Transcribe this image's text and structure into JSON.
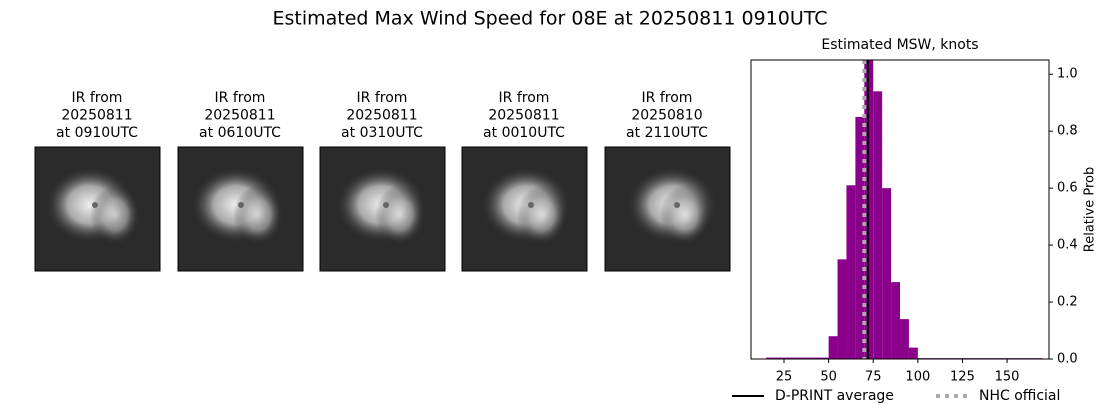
{
  "title": "Estimated Max Wind Speed for 08E at 20250811 0910UTC",
  "panels": [
    {
      "label": [
        "IR from",
        "20250811",
        "at 0910UTC"
      ]
    },
    {
      "label": [
        "IR from",
        "20250811",
        "at 0610UTC"
      ]
    },
    {
      "label": [
        "IR from",
        "20250811",
        "at 0310UTC"
      ]
    },
    {
      "label": [
        "IR from",
        "20250811",
        "at 0010UTC"
      ]
    },
    {
      "label": [
        "IR from",
        "20250810",
        "at 2110UTC"
      ]
    }
  ],
  "chart_data": {
    "type": "histogram",
    "title": "Estimated MSW, knots",
    "y_label": "Relative Prob",
    "color": "#8b008b",
    "bins": [
      15,
      20,
      25,
      30,
      35,
      40,
      45,
      50,
      55,
      60,
      65,
      70,
      75,
      80,
      85,
      90,
      95,
      100,
      105,
      110,
      115,
      120,
      125,
      130,
      135,
      140,
      145,
      150,
      155,
      160,
      165,
      170
    ],
    "values": [
      0.005,
      0.005,
      0.005,
      0.005,
      0.005,
      0.005,
      0.005,
      0.08,
      0.35,
      0.61,
      0.85,
      1.05,
      0.94,
      0.6,
      0.27,
      0.14,
      0.04,
      0.003,
      0.003,
      0.003,
      0.003,
      0.003,
      0.003,
      0.003,
      0.003,
      0.003,
      0.003,
      0.003,
      0.003,
      0.003,
      0.003
    ],
    "xlim": [
      6.5,
      173.5
    ],
    "ylim": [
      0,
      1.05
    ],
    "xticks": [
      25,
      50,
      75,
      100,
      125,
      150
    ],
    "yticks": [
      {
        "value": 0,
        "label": "0.0"
      },
      {
        "value": 0.2,
        "label": "0.2"
      },
      {
        "value": 0.4,
        "label": "0.4"
      },
      {
        "value": 0.6,
        "label": "0.6"
      },
      {
        "value": 0.8,
        "label": "0.8"
      },
      {
        "value": 1,
        "label": "1.0"
      }
    ],
    "lines": [
      {
        "name": "D-PRINT average",
        "value": 72,
        "color": "#000000",
        "style": "solid"
      },
      {
        "name": "NHC official",
        "value": 70,
        "color": "#aaaaaa",
        "style": "dotted"
      }
    ]
  }
}
